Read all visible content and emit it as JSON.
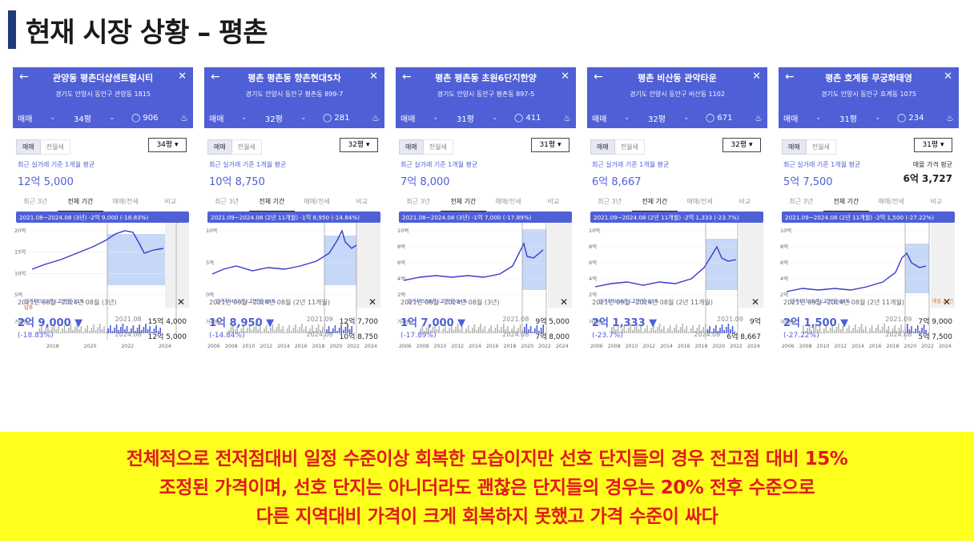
{
  "title": "현재 시장 상황 – 평촌",
  "colors": {
    "header_blue": "#4f5fd6",
    "fill": "#b8cdf5",
    "line": "#3a3ac8",
    "banner_bg": "#ffff1e",
    "banner_text": "#e11a1a"
  },
  "common": {
    "deal_type": "매매",
    "tab_sale": "매매",
    "tab_rent": "전월세",
    "avg_label": "최근 실거래 기준 1개월 평균",
    "range_tabs": [
      "최근 3년",
      "전체 기간",
      "매매/전세",
      "비교"
    ],
    "volume_label": "거래량",
    "back_icon": "arrow-left-icon",
    "close_icon": "close-icon",
    "comment_icon": "speech-bubble-icon",
    "bell_icon": "bell-icon"
  },
  "panels": [
    {
      "name": "관양동 평촌더샵센트럴시티",
      "address": "경기도 안양시 동안구 관양동 1815",
      "area": "34평",
      "comments": "906",
      "avg_price": "12억 5,000",
      "chart_tooltip": "2021.08~2024.08 (3년) -2억 9,000 (-18.83%)",
      "chart_note": "실거래 321건 / 회전율 31%",
      "chart_note2": "입주",
      "y_ticks": [
        "20억",
        "15억",
        "10억",
        "5억"
      ],
      "x_ticks": [
        "2018",
        "2020",
        "2022",
        "2024"
      ],
      "footer_period": "2021년 08월~2024년 08월 (3년)",
      "footer_change": "2억 9,000 ▼",
      "footer_pct": "(-18.83%)",
      "footer_rows": [
        {
          "date": "2021.08",
          "price": "15억 4,000"
        },
        {
          "date": "2024.08",
          "price": "12억 5,000"
        }
      ]
    },
    {
      "name": "평촌 평촌동 향촌현대5차",
      "address": "경기도 안양시 동안구 평촌동 899-7",
      "area": "32평",
      "comments": "281",
      "avg_price": "10억 8,750",
      "chart_tooltip": "2021.09~2024.08 (2년 11개월) -1억 8,950 (-14.84%)",
      "chart_note": "실거래 452건 / 회전율 89%",
      "y_ticks": [
        "10억",
        "5억",
        "0억"
      ],
      "x_ticks": [
        "2006",
        "2008",
        "2010",
        "2012",
        "2014",
        "2016",
        "2018",
        "2020",
        "2022",
        "2024"
      ],
      "footer_period": "2021년 09월~2024년 08월 (2년 11개월)",
      "footer_change": "1억 8,950 ▼",
      "footer_pct": "(-14.84%)",
      "footer_rows": [
        {
          "date": "2021.09",
          "price": "12억 7,700"
        },
        {
          "date": "2024.08",
          "price": "10억 8,750"
        }
      ]
    },
    {
      "name": "평촌 평촌동 초원6단지한양",
      "address": "경기도 안양시 동안구 평촌동 897-5",
      "area": "31평",
      "comments": "411",
      "avg_price": "7억 8,000",
      "chart_tooltip": "2021.08~2024.08 (3년) -1억 7,000 (-17.89%)",
      "chart_note": "실거래 558건 / 회전율 94%",
      "y_ticks": [
        "10억",
        "8억",
        "6억",
        "4억",
        "2억"
      ],
      "x_ticks": [
        "2006",
        "2008",
        "2010",
        "2012",
        "2014",
        "2016",
        "2018",
        "2020",
        "2022",
        "2024"
      ],
      "footer_period": "2021년 08월~2024년 08월 (3년)",
      "footer_change": "1억 7,000 ▼",
      "footer_pct": "(-17.89%)",
      "footer_rows": [
        {
          "date": "2021.08",
          "price": "9억 5,000"
        },
        {
          "date": "2024.08",
          "price": "7억 8,000"
        }
      ]
    },
    {
      "name": "평촌 비산동 관악타운",
      "address": "경기도 안양시 동안구 비산동 1102",
      "area": "32평",
      "comments": "671",
      "avg_price": "6억 8,667",
      "chart_tooltip": "2021.09~2024.08 (2년 11개월) -2억 1,333 (-23.7%)",
      "chart_note": "실거래 919건 / 회전율 83%",
      "y_ticks": [
        "10억",
        "8억",
        "6억",
        "4억",
        "2억"
      ],
      "x_ticks": [
        "2006",
        "2008",
        "2010",
        "2012",
        "2014",
        "2016",
        "2018",
        "2020",
        "2022",
        "2024"
      ],
      "footer_period": "2021년 09월~2024년 08월 (2년 11개월)",
      "footer_change": "2억 1,333 ▼",
      "footer_pct": "(-23.7%)",
      "footer_rows": [
        {
          "date": "2021.09",
          "price": "9억"
        },
        {
          "date": "2024.08",
          "price": "6억 8,667"
        }
      ]
    },
    {
      "name": "평촌 호계동 무궁화태영",
      "address": "경기도 안양시 동안구 호계동 1075",
      "area": "31평",
      "comments": "234",
      "avg_price": "5억 7,500",
      "sale_label": "매물 가격 평균",
      "sale_price": "6억 3,727",
      "chart_tooltip": "2021.09~2024.08 (2년 11개월) -2억 1,500 (-27.22%)",
      "chart_note": "실거래 315건 / 회전율 88%",
      "chart_note_right": "매물 22건",
      "y_ticks": [
        "10억",
        "8억",
        "6억",
        "4억",
        "2억"
      ],
      "x_ticks": [
        "2006",
        "2008",
        "2010",
        "2012",
        "2014",
        "2016",
        "2018",
        "2020",
        "2022",
        "2024"
      ],
      "footer_period": "2021년 09월~2024년 08월 (2년 11개월)",
      "footer_change": "2억 1,500 ▼",
      "footer_pct": "(-27.22%)",
      "footer_rows": [
        {
          "date": "2021.09",
          "price": "7억 9,000"
        },
        {
          "date": "2024.08",
          "price": "5억 7,500"
        }
      ]
    }
  ],
  "banner": [
    "전체적으로 전저점대비 일정 수준이상 회복한 모습이지만 선호 단지들의 경우 전고점 대비 15%",
    "조정된 가격이며, 선호 단지는 아니더라도 괜찮은 단지들의 경우는 20% 전후 수준으로",
    "다른 지역대비 가격이 크게 회복하지 못했고 가격 수준이 싸다"
  ]
}
